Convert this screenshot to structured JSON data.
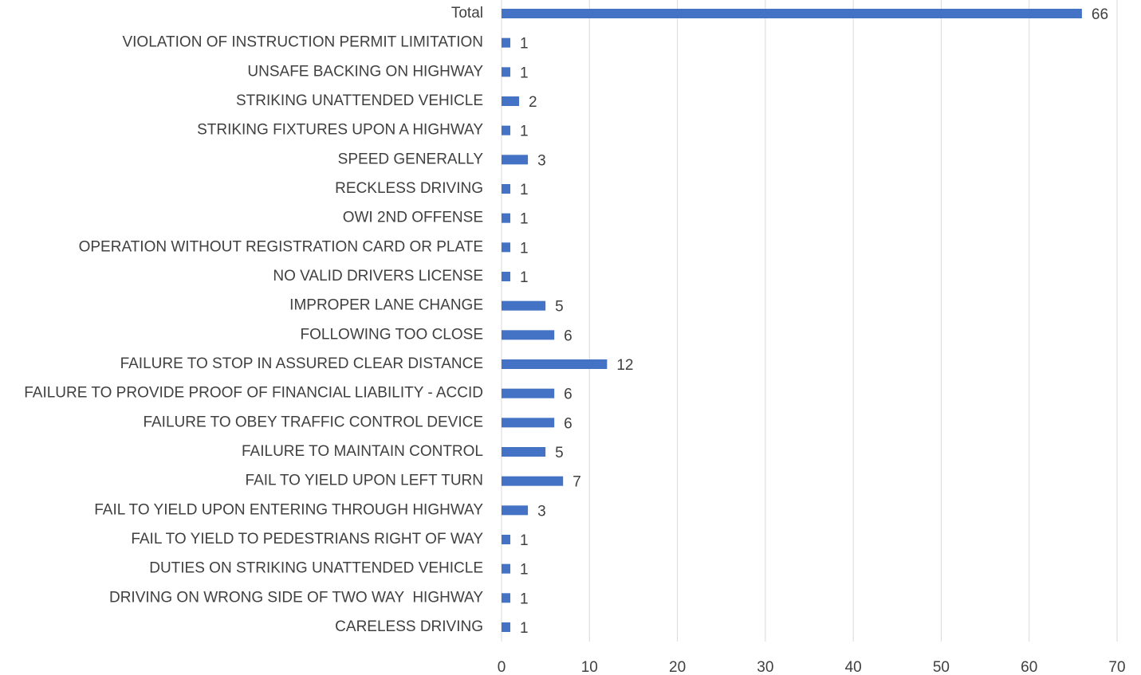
{
  "chart_data": {
    "type": "bar",
    "orientation": "horizontal",
    "categories": [
      "CARELESS DRIVING",
      "DRIVING ON WRONG SIDE OF TWO WAY  HIGHWAY",
      "DUTIES ON STRIKING UNATTENDED VEHICLE",
      "FAIL TO YIELD TO PEDESTRIANS RIGHT OF WAY",
      "FAIL TO YIELD UPON ENTERING THROUGH HIGHWAY",
      "FAIL TO YIELD UPON LEFT TURN",
      "FAILURE TO MAINTAIN CONTROL",
      "FAILURE TO OBEY TRAFFIC CONTROL DEVICE",
      "FAILURE TO PROVIDE PROOF OF FINANCIAL LIABILITY - ACCID",
      "FAILURE TO STOP IN ASSURED CLEAR DISTANCE",
      "FOLLOWING TOO CLOSE",
      "IMPROPER LANE CHANGE",
      "NO VALID DRIVERS LICENSE",
      "OPERATION WITHOUT REGISTRATION CARD OR PLATE",
      "OWI 2ND OFFENSE",
      "RECKLESS DRIVING",
      "SPEED GENERALLY",
      "STRIKING FIXTURES UPON A HIGHWAY",
      "STRIKING UNATTENDED VEHICLE",
      "UNSAFE BACKING ON HIGHWAY",
      "VIOLATION OF INSTRUCTION PERMIT LIMITATION",
      "Total"
    ],
    "values": [
      1,
      1,
      1,
      1,
      3,
      7,
      5,
      6,
      6,
      12,
      6,
      5,
      1,
      1,
      1,
      1,
      3,
      1,
      2,
      1,
      1,
      66
    ],
    "color": "#4472c4",
    "xlim": [
      0,
      70
    ],
    "xticks": [
      0,
      10,
      20,
      30,
      40,
      50,
      60,
      70
    ],
    "grid": true
  }
}
